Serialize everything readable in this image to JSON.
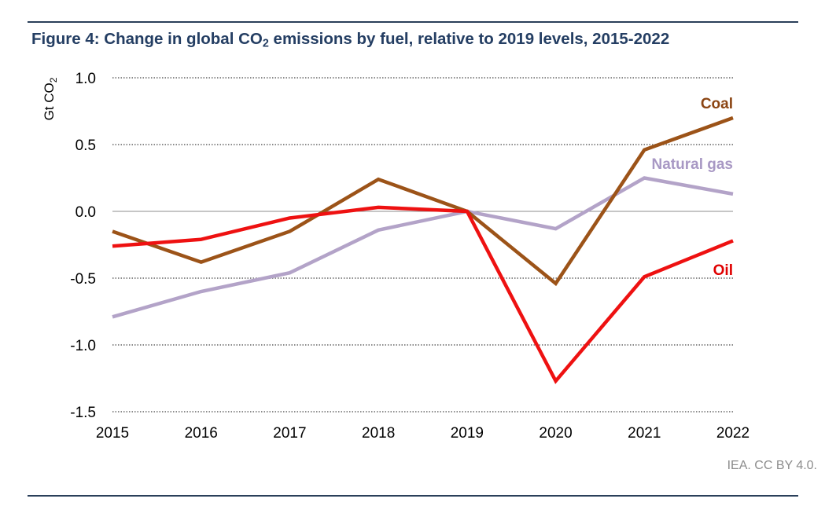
{
  "header": {
    "title_pre": "Figure 4: Change in global CO",
    "title_sub": "2",
    "title_post": " emissions by fuel, relative to 2019 levels, 2015-2022"
  },
  "credit": "IEA. CC BY 4.0.",
  "chart_data": {
    "type": "line",
    "ylabel_pre": "Gt CO",
    "ylabel_sub": "2",
    "ylim": [
      -1.5,
      1.0
    ],
    "yticks": [
      1.0,
      0.5,
      0.0,
      -0.5,
      -1.0,
      -1.5
    ],
    "ytick_labels": [
      "1.0",
      "0.5",
      "0.0",
      "-0.5",
      "-1.0",
      "-1.5"
    ],
    "categories": [
      "2015",
      "2016",
      "2017",
      "2018",
      "2019",
      "2020",
      "2021",
      "2022"
    ],
    "grid": "dotted horizontal",
    "series": [
      {
        "name": "Coal",
        "color": "#9c5318",
        "label_color": "#8b4513",
        "values": [
          -0.15,
          -0.38,
          -0.15,
          0.24,
          0.0,
          -0.54,
          0.46,
          0.7
        ]
      },
      {
        "name": "Natural gas",
        "color": "#b3a3c8",
        "label_color": "#a898c4",
        "values": [
          -0.79,
          -0.6,
          -0.46,
          -0.14,
          0.0,
          -0.13,
          0.25,
          0.13
        ]
      },
      {
        "name": "Oil",
        "color": "#ee1111",
        "label_color": "#e00000",
        "values": [
          -0.26,
          -0.21,
          -0.05,
          0.03,
          0.0,
          -1.27,
          -0.49,
          -0.22
        ]
      }
    ]
  }
}
